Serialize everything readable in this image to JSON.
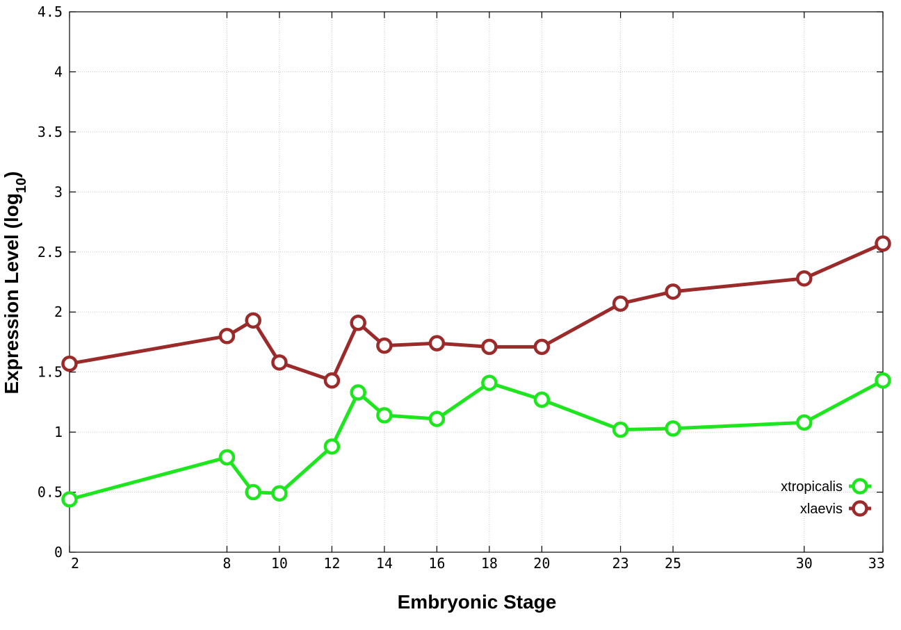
{
  "chart_data": {
    "type": "line",
    "x_tick_labels": [
      "2",
      "8",
      "10",
      "12",
      "14",
      "16",
      "18",
      "20",
      "23",
      "25",
      "30",
      "33"
    ],
    "y_tick_labels": [
      "0",
      "0.5",
      "1",
      "1.5",
      "2",
      "2.5",
      "3",
      "3.5",
      "4",
      "4.5"
    ],
    "xlabel": "Embryonic Stage",
    "ylabel": {
      "main": "Expression Level (log",
      "subscript": "10",
      "suffix": ")"
    },
    "xlim": [
      2,
      33
    ],
    "ylim": [
      0,
      4.5
    ],
    "grid": true,
    "legend_position": "bottom-right",
    "x": [
      2,
      8,
      9,
      10,
      12,
      13,
      14,
      16,
      18,
      20,
      23,
      25,
      30,
      33
    ],
    "series": [
      {
        "name": "xtropicalis",
        "color": "#1ee61e",
        "values": [
          0.44,
          0.79,
          0.5,
          0.49,
          0.88,
          1.33,
          1.14,
          1.11,
          1.41,
          1.27,
          1.02,
          1.03,
          1.08,
          1.43
        ]
      },
      {
        "name": "xlaevis",
        "color": "#9b2a2a",
        "values": [
          1.57,
          1.8,
          1.93,
          1.58,
          1.43,
          1.91,
          1.72,
          1.74,
          1.71,
          1.71,
          2.07,
          2.17,
          2.28,
          2.57
        ]
      }
    ]
  }
}
